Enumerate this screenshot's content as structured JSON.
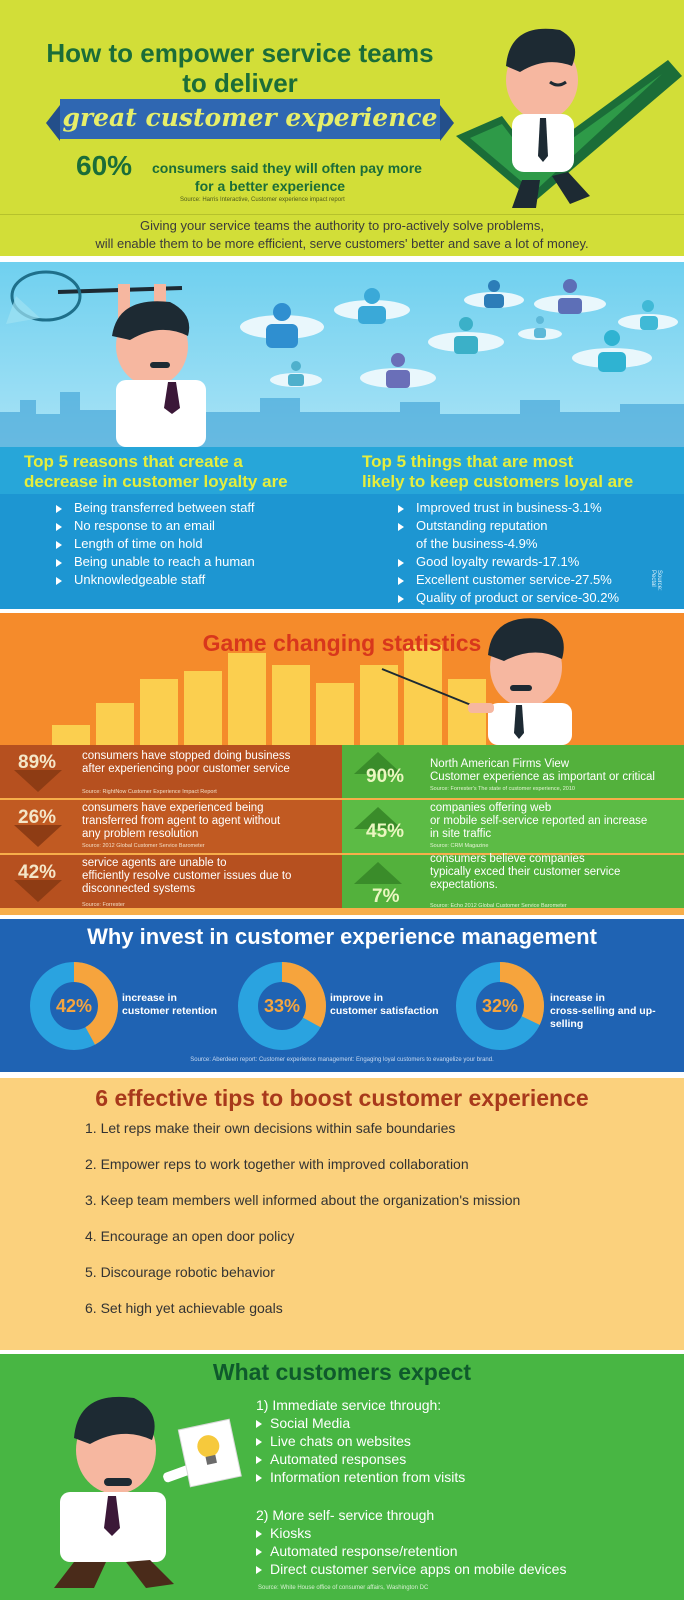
{
  "header": {
    "title_line1": "How to empower service teams",
    "title_line2": "to deliver",
    "ribbon": "great customer experience",
    "stat_number": "60%",
    "stat_text_line1": "consumers said they will often pay more",
    "stat_text_line2": "for a better experience",
    "source": "Source: Harris Interactive, Customer experience impact report"
  },
  "intro": {
    "line1": "Giving your service teams the authority to pro-actively solve problems,",
    "line2": "will enable them to be more efficient, serve customers' better and save a lot of money."
  },
  "loyalty": {
    "left_heading_line1": "Top 5 reasons that create a",
    "left_heading_line2": "decrease in customer loyalty are",
    "right_heading_line1": "Top 5 things that are most",
    "right_heading_line2": "likely to keep customers loyal are",
    "left_items": [
      "Being transferred between staff",
      "No response to an email",
      "Length of time on hold",
      "Being unable to reach a human",
      "Unknowledgeable staff"
    ],
    "right_items": [
      "Improved trust in business-3.1%",
      "Outstanding reputation",
      "of the business-4.9%",
      "Good loyalty rewards-17.1%",
      "Excellent customer service-27.5%",
      "Quality of product or service-30.2%"
    ],
    "source": "Source: Pectal"
  },
  "game": {
    "title": "Game changing statistics",
    "left": [
      {
        "pct": "89%",
        "line1": "consumers have stopped doing business",
        "line2": "after experiencing poor customer service",
        "line3": "",
        "source": "Source: RightNow Customer Experience Impact Report"
      },
      {
        "pct": "26%",
        "line1": "consumers have experienced being",
        "line2": "transferred from agent to agent without",
        "line3": "any problem resolution",
        "source": "Source: 2012 Global Customer Service Barometer"
      },
      {
        "pct": "42%",
        "line1": "service agents are unable to",
        "line2": "efficiently resolve customer issues due to",
        "line3": "disconnected systems",
        "source": "Source: Forrester"
      }
    ],
    "right": [
      {
        "pct": "90%",
        "line1": "North American Firms View",
        "line2": "Customer experience as important or critical",
        "line3": "",
        "source": "Source: Forrester's The state of customer experience, 2010"
      },
      {
        "pct": "45%",
        "line1": "companies offering web",
        "line2": "or mobile self-service reported an increase",
        "line3": "in site traffic",
        "source": "Source: CRM Magazine"
      },
      {
        "pct": "7%",
        "line1": "consumers believe companies",
        "line2": "typically exced their customer service",
        "line3": "expectations.",
        "source": "Source: Echo 2012 Global Customer Service Barometer"
      }
    ]
  },
  "invest": {
    "title": "Why invest in customer experience management",
    "items": [
      {
        "pct": "42%",
        "value": 42,
        "line1": "increase in",
        "line2": "customer retention"
      },
      {
        "pct": "33%",
        "value": 33,
        "line1": "improve in",
        "line2": "customer satisfaction"
      },
      {
        "pct": "32%",
        "value": 32,
        "line1": "increase in",
        "line2": "cross-selling and up-selling"
      }
    ],
    "source": "Source: Aberdeen report: Customer experience management: Engaging loyal customers to evangelize your brand.",
    "colors": {
      "ring_track": "#2aa3e0",
      "ring_fill": "#f6a43d",
      "center": "#1f63b3"
    }
  },
  "tips": {
    "title": "6 effective tips to boost customer experience",
    "items": [
      "1.  Let reps make their own decisions within safe boundaries",
      "2.  Empower reps to work together with improved collaboration",
      "3.  Keep team members well informed about the organization's mission",
      "4.  Encourage an open door policy",
      "5.  Discourage robotic behavior",
      "6.  Set high yet achievable goals"
    ]
  },
  "expect": {
    "title": "What customers expect",
    "group1_heading": "1)  Immediate service through:",
    "group1_items": [
      "Social Media",
      "Live chats on websites",
      "Automated responses",
      "Information retention from visits"
    ],
    "group2_heading": "2)  More self- service through",
    "group2_items": [
      "Kiosks",
      "Automated response/retention",
      "Direct customer service apps on mobile devices"
    ],
    "source": "Source: White House office of consumer affairs, Washington DC"
  }
}
